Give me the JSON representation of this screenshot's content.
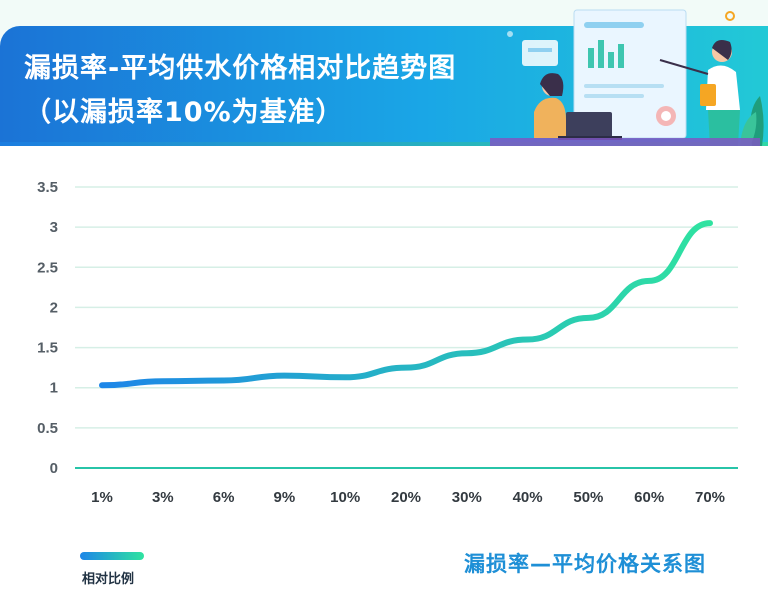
{
  "header": {
    "title": "漏损率-平均供水价格相对比趋势图",
    "subtitle": "（以漏损率10%为基准）"
  },
  "caption": "漏损率—平均价格关系图",
  "colors": {
    "header_start": "#1b73d6",
    "header_end": "#22c9d6",
    "line_start": "#1d86e8",
    "line_end": "#2fe3a0",
    "grid": "#d6efe6",
    "axis": "#27c4a8"
  },
  "chart_data": {
    "type": "line",
    "title": "漏损率-平均供水价格相对比趋势图",
    "subtitle": "（以漏损率10%为基准）",
    "categories": [
      "1%",
      "3%",
      "6%",
      "9%",
      "10%",
      "20%",
      "30%",
      "40%",
      "50%",
      "60%",
      "70%"
    ],
    "series": [
      {
        "name": "相对比例",
        "values": [
          1.03,
          1.08,
          1.09,
          1.15,
          1.13,
          1.25,
          1.43,
          1.6,
          1.87,
          2.33,
          3.05
        ]
      }
    ],
    "y_ticks": [
      "0",
      "0.5",
      "1",
      "1.5",
      "2",
      "2.5",
      "3",
      "3.5"
    ],
    "ylim": [
      0,
      3.5
    ],
    "grid": true,
    "legend": "bottom-left",
    "xlabel": "",
    "ylabel": ""
  }
}
